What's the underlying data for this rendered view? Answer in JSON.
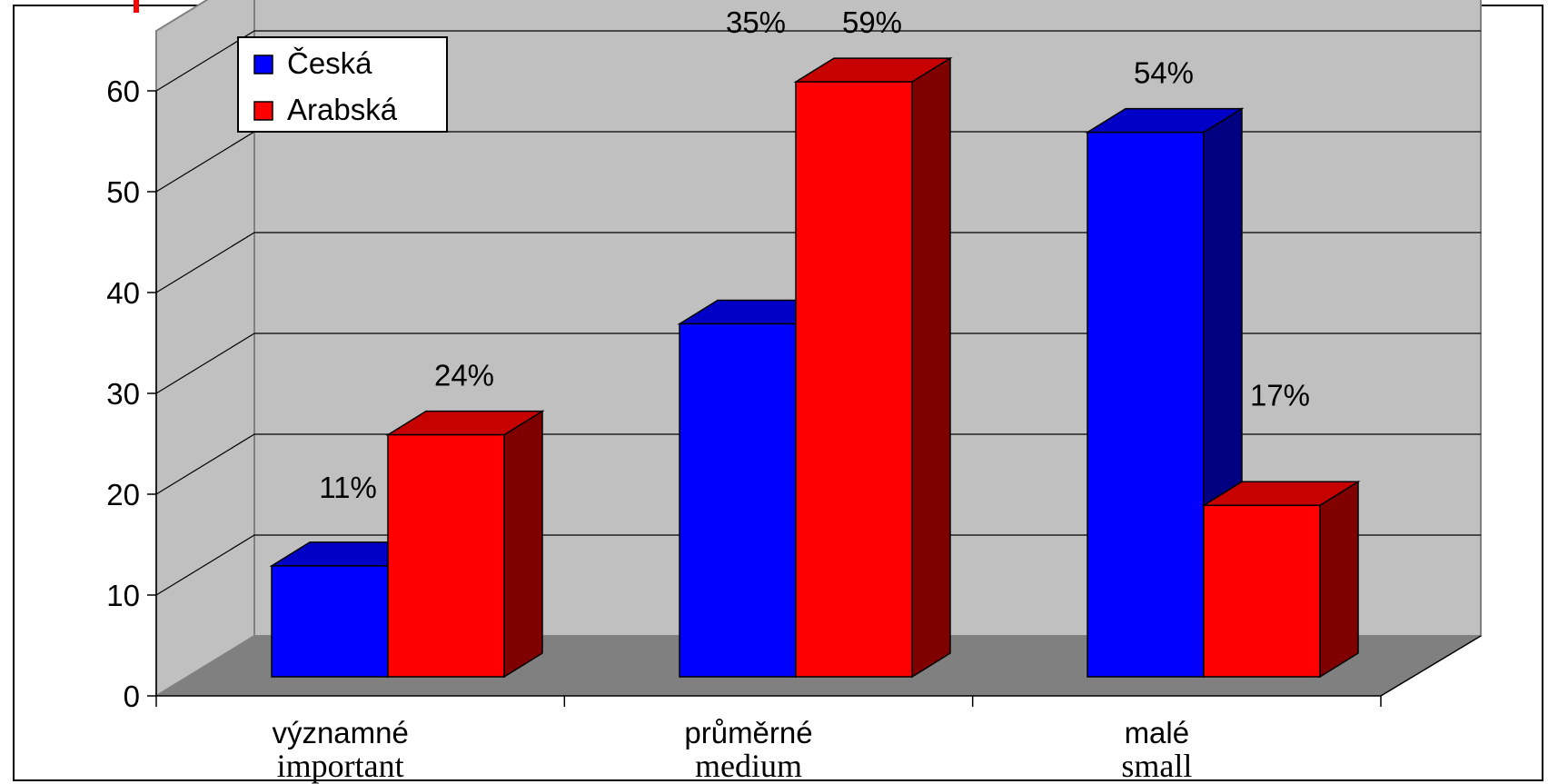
{
  "chart_data": {
    "type": "bar",
    "categories": [
      "významné",
      "průměrné",
      "malé"
    ],
    "categories_en": [
      "important",
      "medium",
      "small"
    ],
    "series": [
      {
        "name": "Česká",
        "values": [
          11,
          35,
          54
        ],
        "labels": [
          "11%",
          "35%",
          "54%"
        ],
        "color": "#0000ff"
      },
      {
        "name": "Arabská",
        "values": [
          24,
          59,
          17
        ],
        "labels": [
          "24%",
          "59%",
          "17%"
        ],
        "color": "#ff0000"
      }
    ],
    "ylim": [
      0,
      60
    ],
    "yticks": [
      "0",
      "10",
      "20",
      "30",
      "40",
      "50",
      "60"
    ],
    "grid": true,
    "legend": "top-left",
    "wall_color": "#c0c0c0",
    "floor_color": "#808080"
  }
}
